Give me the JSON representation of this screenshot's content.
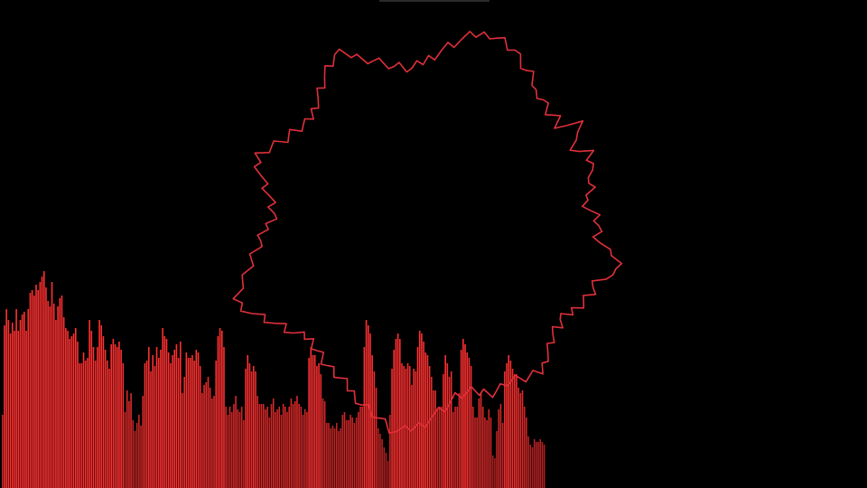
{
  "visualizer": {
    "background_color": "#000000",
    "accent_color": "#ff2a2a",
    "outline_color": "#e0303a",
    "spectrum_bars": [
      0.27,
      0.6,
      0.66,
      0.62,
      0.57,
      0.61,
      0.58,
      0.66,
      0.58,
      0.62,
      0.64,
      0.65,
      0.58,
      0.66,
      0.72,
      0.73,
      0.71,
      0.75,
      0.73,
      0.76,
      0.78,
      0.8,
      0.74,
      0.69,
      0.67,
      0.76,
      0.68,
      0.62,
      0.67,
      0.7,
      0.71,
      0.63,
      0.59,
      0.58,
      0.55,
      0.56,
      0.57,
      0.59,
      0.54,
      0.46,
      0.46,
      0.5,
      0.47,
      0.48,
      0.62,
      0.58,
      0.52,
      0.47,
      0.52,
      0.62,
      0.6,
      0.56,
      0.51,
      0.47,
      0.44,
      0.53,
      0.55,
      0.53,
      0.52,
      0.54,
      0.51,
      0.46,
      0.28,
      0.36,
      0.32,
      0.35,
      0.25,
      0.21,
      0.24,
      0.27,
      0.23,
      0.34,
      0.46,
      0.47,
      0.52,
      0.43,
      0.49,
      0.45,
      0.52,
      0.48,
      0.51,
      0.59,
      0.56,
      0.55,
      0.5,
      0.46,
      0.49,
      0.51,
      0.53,
      0.48,
      0.54,
      0.35,
      0.41,
      0.5,
      0.48,
      0.48,
      0.49,
      0.47,
      0.51,
      0.5,
      0.45,
      0.35,
      0.38,
      0.39,
      0.41,
      0.37,
      0.33,
      0.34,
      0.47,
      0.56,
      0.59,
      0.58,
      0.52,
      0.3,
      0.27,
      0.3,
      0.28,
      0.31,
      0.34,
      0.29,
      0.28,
      0.3,
      0.25,
      0.44,
      0.49,
      0.46,
      0.43,
      0.45,
      0.43,
      0.34,
      0.31,
      0.31,
      0.31,
      0.29,
      0.3,
      0.26,
      0.31,
      0.33,
      0.28,
      0.29,
      0.3,
      0.27,
      0.31,
      0.3,
      0.28,
      0.3,
      0.33,
      0.31,
      0.32,
      0.34,
      0.31,
      0.3,
      0.27,
      0.29,
      0.28,
      0.48,
      0.52,
      0.49,
      0.49,
      0.45,
      0.46,
      0.42,
      0.33,
      0.32,
      0.24,
      0.24,
      0.22,
      0.23,
      0.22,
      0.24,
      0.21,
      0.22,
      0.27,
      0.28,
      0.25,
      0.25,
      0.27,
      0.26,
      0.24,
      0.26,
      0.28,
      0.3,
      0.3,
      0.52,
      0.62,
      0.6,
      0.57,
      0.49,
      0.43,
      0.37,
      0.22,
      0.2,
      0.18,
      0.15,
      0.13,
      0.1,
      0.27,
      0.44,
      0.51,
      0.55,
      0.57,
      0.55,
      0.46,
      0.45,
      0.44,
      0.46,
      0.45,
      0.38,
      0.44,
      0.43,
      0.52,
      0.58,
      0.57,
      0.54,
      0.5,
      0.49,
      0.45,
      0.41,
      0.36,
      0.36,
      0.29,
      0.3,
      0.3,
      0.42,
      0.49,
      0.46,
      0.41,
      0.43,
      0.28,
      0.3,
      0.3,
      0.35,
      0.51,
      0.55,
      0.53,
      0.5,
      0.48,
      0.45,
      0.3,
      0.26,
      0.26,
      0.33,
      0.35,
      0.3,
      0.26,
      0.25,
      0.29,
      0.26,
      0.12,
      0.11,
      0.21,
      0.29,
      0.31,
      0.24,
      0.43,
      0.46,
      0.49,
      0.47,
      0.44,
      0.42,
      0.42,
      0.37,
      0.35,
      0.36,
      0.3,
      0.26,
      0.19,
      0.16,
      0.15,
      0.18,
      0.17,
      0.17,
      0.18,
      0.17,
      0.16
    ],
    "outline_radii": [
      1.0,
      0.99,
      0.98,
      0.97,
      0.96,
      0.93,
      0.91,
      0.89,
      0.88,
      0.86,
      0.83,
      0.84,
      0.83,
      0.81,
      0.8,
      0.8,
      0.8,
      0.78,
      0.81,
      0.86,
      0.85,
      0.8,
      0.79,
      0.8,
      0.84,
      0.83,
      0.83,
      0.79,
      0.8,
      0.77,
      0.77,
      0.76,
      0.74,
      0.75,
      0.76,
      0.78,
      0.79,
      0.79,
      0.78,
      0.78,
      0.79,
      0.82,
      0.87,
      0.9,
      0.92,
      0.89,
      0.84,
      0.82,
      0.81,
      0.81,
      0.8,
      0.79,
      0.78,
      0.77,
      0.77,
      0.76,
      0.75,
      0.76,
      0.76,
      0.76,
      0.77,
      0.79,
      0.8,
      0.81,
      0.84,
      0.86,
      0.86,
      0.85,
      0.84,
      0.83,
      0.82,
      0.81,
      0.83,
      0.83,
      0.83,
      0.82,
      0.82,
      0.81,
      0.81,
      0.81,
      0.82,
      0.84,
      0.86,
      0.88,
      0.9,
      0.93,
      0.95,
      0.97,
      0.99,
      1.0,
      0.99,
      0.97,
      0.95,
      0.93,
      0.92,
      0.91,
      0.89,
      0.88,
      0.87,
      0.86,
      0.85,
      0.84,
      0.84,
      0.83,
      0.82,
      0.81,
      0.8,
      0.79,
      0.79,
      0.8,
      0.82,
      0.84,
      0.85,
      0.86,
      0.88,
      0.9,
      0.92,
      0.95,
      0.97,
      0.99,
      1.0,
      0.98,
      0.95,
      0.92,
      0.9,
      0.88,
      0.86,
      0.84,
      0.82,
      0.81,
      0.8,
      0.79,
      0.78,
      0.77,
      0.78,
      0.79,
      0.8,
      0.82,
      0.84,
      0.86,
      0.88,
      0.9,
      0.92,
      0.9,
      0.88,
      0.86,
      0.84,
      0.83,
      0.82,
      0.81,
      0.8,
      0.79,
      0.8,
      0.82,
      0.84,
      0.85,
      0.87,
      0.89,
      0.91,
      0.93,
      0.95,
      0.97,
      0.96,
      0.94,
      0.92,
      0.9,
      0.88,
      0.86,
      0.84,
      0.82,
      0.81,
      0.8,
      0.79,
      0.8,
      0.82,
      0.84,
      0.86,
      0.88,
      0.9,
      0.92,
      0.94,
      0.96,
      0.98,
      0.99
    ]
  }
}
